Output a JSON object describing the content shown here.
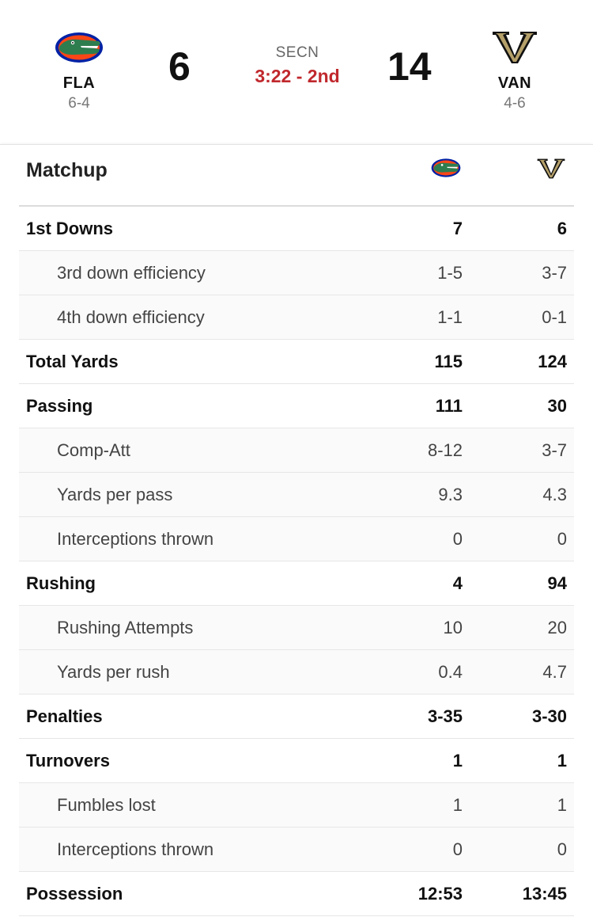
{
  "header": {
    "home": {
      "abbr": "FLA",
      "record": "6-4",
      "score": "6"
    },
    "away": {
      "abbr": "VAN",
      "record": "4-6",
      "score": "14"
    },
    "network": "SECN",
    "clock": "3:22 - 2nd"
  },
  "matchup": {
    "title": "Matchup",
    "rows": [
      {
        "label": "1st Downs",
        "home": "7",
        "away": "6",
        "sub": false
      },
      {
        "label": "3rd down efficiency",
        "home": "1-5",
        "away": "3-7",
        "sub": true
      },
      {
        "label": "4th down efficiency",
        "home": "1-1",
        "away": "0-1",
        "sub": true
      },
      {
        "label": "Total Yards",
        "home": "115",
        "away": "124",
        "sub": false
      },
      {
        "label": "Passing",
        "home": "111",
        "away": "30",
        "sub": false
      },
      {
        "label": "Comp-Att",
        "home": "8-12",
        "away": "3-7",
        "sub": true
      },
      {
        "label": "Yards per pass",
        "home": "9.3",
        "away": "4.3",
        "sub": true
      },
      {
        "label": "Interceptions thrown",
        "home": "0",
        "away": "0",
        "sub": true
      },
      {
        "label": "Rushing",
        "home": "4",
        "away": "94",
        "sub": false
      },
      {
        "label": "Rushing Attempts",
        "home": "10",
        "away": "20",
        "sub": true
      },
      {
        "label": "Yards per rush",
        "home": "0.4",
        "away": "4.7",
        "sub": true
      },
      {
        "label": "Penalties",
        "home": "3-35",
        "away": "3-30",
        "sub": false
      },
      {
        "label": "Turnovers",
        "home": "1",
        "away": "1",
        "sub": false
      },
      {
        "label": "Fumbles lost",
        "home": "1",
        "away": "1",
        "sub": true
      },
      {
        "label": "Interceptions thrown",
        "home": "0",
        "away": "0",
        "sub": true
      },
      {
        "label": "Possession",
        "home": "12:53",
        "away": "13:45",
        "sub": false
      }
    ]
  },
  "colors": {
    "live_clock": "#c0282d",
    "florida_blue": "#0021a5",
    "florida_orange": "#fa4616",
    "gator_green": "#2e7d4f",
    "vandy_gold": "#b5a06a"
  },
  "icons": {
    "home_logo": "gator-logo-icon",
    "away_logo": "vanderbilt-v-logo-icon"
  }
}
